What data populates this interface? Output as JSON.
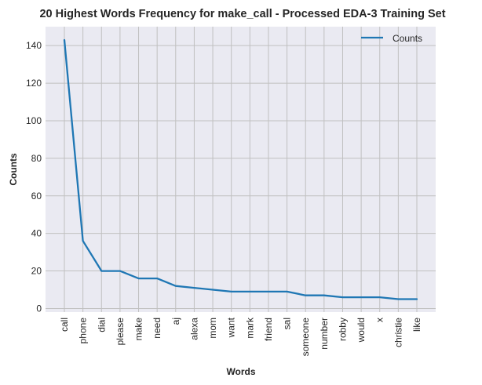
{
  "chart_data": {
    "type": "line",
    "title": "20 Highest Words Frequency for make_call - Processed EDA-3 Training Set",
    "xlabel": "Words",
    "ylabel": "Counts",
    "categories": [
      "call",
      "phone",
      "dial",
      "please",
      "make",
      "need",
      "aj",
      "alexa",
      "mom",
      "want",
      "mark",
      "friend",
      "sal",
      "someone",
      "number",
      "robby",
      "would",
      "x",
      "christie",
      "like"
    ],
    "series": [
      {
        "name": "Counts",
        "values": [
          143,
          36,
          20,
          20,
          16,
          16,
          12,
          11,
          10,
          9,
          9,
          9,
          9,
          7,
          7,
          6,
          6,
          6,
          5,
          5
        ],
        "color": "#1f77b4"
      }
    ],
    "yticks": [
      0,
      20,
      40,
      60,
      80,
      100,
      120,
      140
    ],
    "ylim": [
      -1.9,
      150.1
    ],
    "grid": true,
    "legend_position": "top-right",
    "colors": {
      "plot_background": "#eaeaf2",
      "grid": "#c0c0c0",
      "text": "#262626"
    }
  }
}
